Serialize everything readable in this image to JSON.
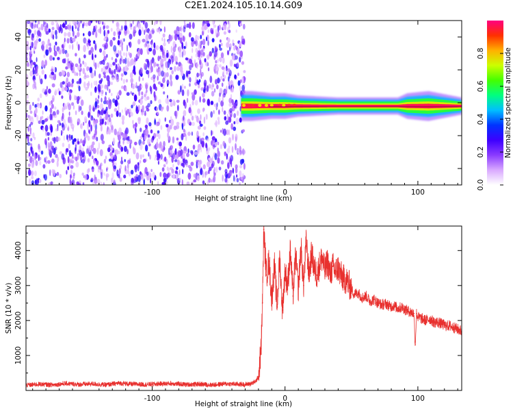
{
  "title": "C2E1.2024.105.10.14.G09",
  "chart_data": [
    {
      "type": "heatmap",
      "xlabel": "Height of straight line (km)",
      "ylabel": "Frequency (Hz)",
      "xlim": [
        -195,
        133
      ],
      "ylim": [
        -50,
        50
      ],
      "x_ticks": [
        -100,
        0,
        100
      ],
      "y_ticks": [
        -40,
        -20,
        0,
        20,
        40
      ],
      "colorbar": {
        "label": "Normalized spectral amplitude",
        "range": [
          0,
          1
        ],
        "ticks": [
          0.0,
          0.2,
          0.4,
          0.6,
          0.8
        ],
        "colors": [
          "#ffffff",
          "#d9a9ff",
          "#8a3bff",
          "#3d00ff",
          "#0033ff",
          "#00bfff",
          "#00ff80",
          "#44ff00",
          "#ccff00",
          "#ffb000",
          "#ff3000",
          "#ff0080"
        ]
      },
      "noise_region": {
        "x_range": [
          -195,
          -33
        ],
        "freq_range": [
          -50,
          50
        ]
      },
      "signal_band": {
        "x_range": [
          -33,
          133
        ],
        "center_frequency": -2,
        "segments": [
          {
            "x": -33,
            "half_width": 3.5,
            "level": 0.9
          },
          {
            "x": -25,
            "half_width": 3.5,
            "level": 0.95
          },
          {
            "x": -10,
            "half_width": 3.0,
            "level": 0.9
          },
          {
            "x": 0,
            "half_width": 3.0,
            "level": 0.9
          },
          {
            "x": 10,
            "half_width": 2.5,
            "level": 0.95
          },
          {
            "x": 40,
            "half_width": 2.0,
            "level": 1.0
          },
          {
            "x": 85,
            "half_width": 2.0,
            "level": 1.0
          },
          {
            "x": 92,
            "half_width": 3.0,
            "level": 0.9
          },
          {
            "x": 108,
            "half_width": 3.5,
            "level": 0.85
          },
          {
            "x": 133,
            "half_width": 2.0,
            "level": 1.0
          }
        ]
      }
    },
    {
      "type": "line",
      "xlabel": "Height of straight line (km)",
      "ylabel": "SNR (10 * v/v)",
      "xlim": [
        -195,
        133
      ],
      "ylim": [
        0,
        4700
      ],
      "x_ticks": [
        -100,
        0,
        100
      ],
      "y_ticks": [
        1000,
        2000,
        3000,
        4000
      ],
      "color": "#e8302e",
      "series": [
        {
          "x": [
            -195,
            -185,
            -175,
            -165,
            -155,
            -145,
            -135,
            -125,
            -115,
            -105,
            -95,
            -85,
            -75,
            -65,
            -55,
            -45,
            -35,
            -30,
            -25,
            -22,
            -20,
            -18,
            -17,
            -16,
            -14,
            -12,
            -10,
            -8,
            -6,
            -4,
            -2,
            0,
            2,
            4,
            6,
            8,
            10,
            12,
            14,
            16,
            18,
            20,
            22,
            24,
            26,
            28,
            30,
            32,
            34,
            36,
            38,
            40,
            42,
            44,
            46,
            48,
            50,
            52,
            55,
            58,
            61,
            64,
            67,
            70,
            73,
            76,
            79,
            82,
            85,
            88,
            91,
            94,
            97,
            98,
            99,
            100,
            103,
            106,
            109,
            112,
            115,
            118,
            121,
            124,
            127,
            130,
            133
          ],
          "y": [
            150,
            180,
            160,
            200,
            170,
            190,
            160,
            210,
            180,
            170,
            190,
            200,
            170,
            180,
            160,
            190,
            180,
            170,
            200,
            260,
            400,
            1200,
            2500,
            4600,
            3300,
            3700,
            2600,
            3600,
            2400,
            3800,
            2300,
            3400,
            3000,
            4000,
            2700,
            3900,
            2900,
            4100,
            3000,
            4300,
            3300,
            3900,
            3500,
            3300,
            3600,
            3800,
            3400,
            3700,
            3300,
            3550,
            3400,
            3500,
            3300,
            3200,
            3150,
            3050,
            2900,
            2750,
            2800,
            2650,
            2700,
            2550,
            2600,
            2500,
            2450,
            2480,
            2400,
            2420,
            2350,
            2380,
            2300,
            2250,
            2200,
            1300,
            2200,
            2100,
            2050,
            2000,
            2050,
            1950,
            1950,
            1900,
            1850,
            1850,
            1800,
            1750,
            1700
          ]
        }
      ]
    }
  ]
}
